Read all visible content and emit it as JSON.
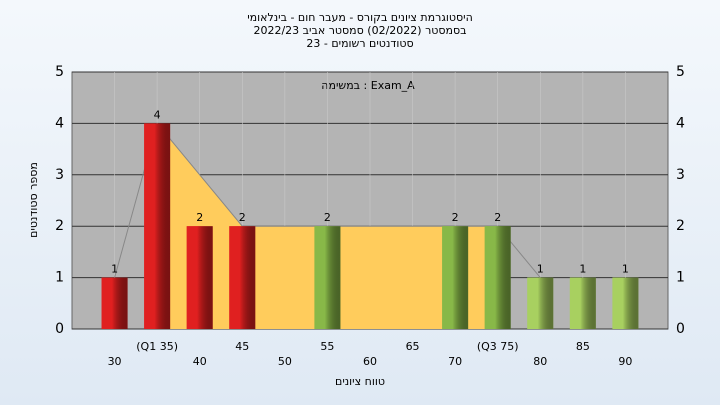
{
  "chart_data": {
    "type": "bar",
    "title": [
      "היסטוגרמת ציונים בקורס - מעבר חום - בינלאומי",
      "בסמסטר (02/2022) סמסטר אביב 2022/23",
      "סטודנטים רשומים - 23"
    ],
    "annotation": "במשימה : Exam_A",
    "xlabel": "טווח ציונים",
    "ylabel": "מספר סטודנטים",
    "x": [
      30,
      35,
      40,
      45,
      55,
      70,
      75,
      80,
      85,
      90
    ],
    "values": [
      1,
      4,
      2,
      2,
      2,
      2,
      2,
      1,
      1,
      1
    ],
    "colors": [
      "#e02020",
      "#e02020",
      "#e02020",
      "#e02020",
      "#88b848",
      "#88b848",
      "#88b848",
      "#a8d060",
      "#a8d060",
      "#a8d060"
    ],
    "area": {
      "x": [
        35,
        45,
        75
      ],
      "values": [
        4,
        2,
        2
      ],
      "color": "#ffcc5c"
    },
    "line": {
      "x": [
        30,
        35,
        45,
        75,
        80
      ],
      "values": [
        1,
        4,
        2,
        2,
        1
      ],
      "color": "#888888"
    },
    "xlim": [
      25,
      95
    ],
    "ylim": [
      0,
      5
    ],
    "xticks": [
      30,
      {
        "value": 35,
        "label": "(Q1 35)"
      },
      40,
      45,
      50,
      55,
      60,
      65,
      70,
      {
        "value": 75,
        "label": "(Q3 75)"
      },
      80,
      85,
      90
    ],
    "yticks": [
      0,
      1,
      2,
      3,
      4,
      5
    ],
    "grid": true
  }
}
